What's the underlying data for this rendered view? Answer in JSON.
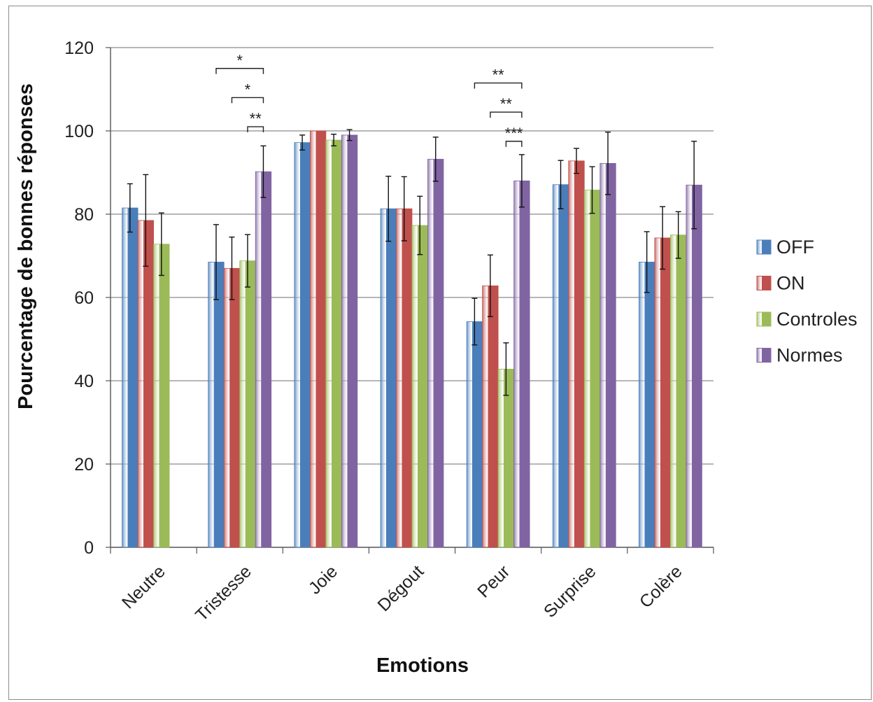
{
  "chart_data": {
    "type": "bar",
    "title": "",
    "xlabel": "Emotions",
    "ylabel": "Pourcentage de bonnes réponses",
    "ylim": [
      0,
      120
    ],
    "yticks": [
      0,
      20,
      40,
      60,
      80,
      100,
      120
    ],
    "grid": true,
    "legend_position": "right",
    "categories": [
      "Neutre",
      "Tristesse",
      "Joie",
      "Dégout",
      "Peur",
      "Surprise",
      "Colère"
    ],
    "series": [
      {
        "name": "OFF",
        "color": "#4a7ebb",
        "values": [
          81.5,
          68.5,
          97.2,
          81.3,
          54.2,
          87.1,
          68.5
        ],
        "errors": [
          5.8,
          9.0,
          1.8,
          7.8,
          5.6,
          5.8,
          7.3
        ]
      },
      {
        "name": "ON",
        "color": "#c0504d",
        "values": [
          78.5,
          67.0,
          100,
          81.3,
          62.8,
          92.8,
          74.3
        ],
        "errors": [
          11.0,
          7.5,
          0,
          7.7,
          7.4,
          3.0,
          7.5
        ]
      },
      {
        "name": "Controles",
        "color": "#9bbb59",
        "values": [
          72.8,
          68.8,
          97.8,
          77.3,
          42.8,
          85.8,
          75.0
        ],
        "errors": [
          7.5,
          6.3,
          1.4,
          7.0,
          6.3,
          5.6,
          5.6
        ]
      },
      {
        "name": "Normes",
        "color": "#8064a2",
        "values": [
          null,
          90.2,
          99.0,
          93.2,
          88.0,
          92.2,
          87.0
        ],
        "errors": [
          null,
          6.2,
          1.3,
          5.3,
          6.3,
          7.5,
          10.5
        ]
      }
    ],
    "significance": [
      {
        "category": "Tristesse",
        "from_series": "OFF",
        "to_series": "Normes",
        "label": "*",
        "y": 115
      },
      {
        "category": "Tristesse",
        "from_series": "ON",
        "to_series": "Normes",
        "label": "*",
        "y": 108
      },
      {
        "category": "Tristesse",
        "from_series": "Controles",
        "to_series": "Normes",
        "label": "**",
        "y": 101
      },
      {
        "category": "Peur",
        "from_series": "OFF",
        "to_series": "Normes",
        "label": "**",
        "y": 111.5
      },
      {
        "category": "Peur",
        "from_series": "ON",
        "to_series": "Normes",
        "label": "**",
        "y": 104.5
      },
      {
        "category": "Peur",
        "from_series": "Controles",
        "to_series": "Normes",
        "label": "***",
        "y": 97.5
      }
    ]
  }
}
